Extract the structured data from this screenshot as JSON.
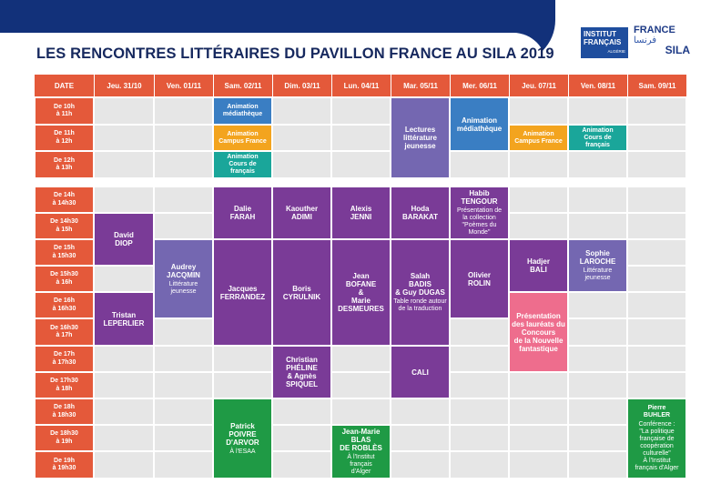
{
  "header": {
    "title": "LES RENCONTRES LITTÉRAIRES DU PAVILLON FRANCE AU SILA 2019",
    "logo_institut": "INSTITUT FRANÇAIS",
    "logo_institut_sub": "ALGÉRIE",
    "logo_france": "FRANCE",
    "logo_arabic": "فرنسا",
    "logo_sila": "SILA"
  },
  "table": {
    "date_label": "DATE",
    "days": [
      "Jeu. 31/10",
      "Ven. 01/11",
      "Sam. 02/11",
      "Dim. 03/11",
      "Lun. 04/11",
      "Mar. 05/11",
      "Mer. 06/11",
      "Jeu. 07/11",
      "Ven. 08/11",
      "Sam. 09/11"
    ],
    "morning_slots": [
      "De 10h\nà 11h",
      "De 11h\nà 12h",
      "De 12h\nà 13h"
    ],
    "afternoon_slots": [
      "De 14h\nà 14h30",
      "De 14h30\nà 15h",
      "De 15h\nà 15h30",
      "De 15h30\nà 16h",
      "De 16h\nà 16h30",
      "De 16h30\nà 17h",
      "De 17h\nà 17h30",
      "De 17h30\nà 18h",
      "De 18h\nà 18h30",
      "De 18h30\nà 19h",
      "De 19h\nà 19h30"
    ]
  },
  "events": [
    {
      "id": "sam-anim-mediatheque",
      "l1": "Animation\nmédiathèque",
      "l2": ""
    },
    {
      "id": "sam-anim-campus",
      "l1": "Animation\nCampus France",
      "l2": ""
    },
    {
      "id": "sam-anim-cours",
      "l1": "Animation\nCours de français",
      "l2": ""
    },
    {
      "id": "mar-lectures",
      "l1": "Lectures\nlittérature\njeunesse",
      "l2": ""
    },
    {
      "id": "mer-anim-mediatheque",
      "l1": "Animation\nmédiathèque",
      "l2": ""
    },
    {
      "id": "jeu-anim-campus",
      "l1": "Animation\nCampus France",
      "l2": ""
    },
    {
      "id": "ven-anim-cours",
      "l1": "Animation\nCours de français",
      "l2": ""
    },
    {
      "id": "jeu-diop",
      "l1": "David\nDIOP",
      "l2": ""
    },
    {
      "id": "jeu-leperlier",
      "l1": "Tristan\nLEPERLIER",
      "l2": ""
    },
    {
      "id": "ven-jacquin",
      "l1": "Audrey\nJACQMIN",
      "l2": "Littérature\njeunesse"
    },
    {
      "id": "sam-farah",
      "l1": "Dalie\nFARAH",
      "l2": ""
    },
    {
      "id": "sam-ferrandez",
      "l1": "Jacques\nFERRANDEZ",
      "l2": ""
    },
    {
      "id": "sam-poivre",
      "l1": "Patrick\nPOIVRE\nD'ARVOR",
      "l2": "À l'ESAA"
    },
    {
      "id": "dim-adimi",
      "l1": "Kaouther\nADIMI",
      "l2": ""
    },
    {
      "id": "dim-cyrulnik",
      "l1": "Boris\nCYRULNIK",
      "l2": ""
    },
    {
      "id": "dim-pheline",
      "l1": "Christian\nPHÉLINE\n& Agnès\nSPIQUEL",
      "l2": ""
    },
    {
      "id": "lun-jenni",
      "l1": "Alexis\nJENNI",
      "l2": ""
    },
    {
      "id": "lun-bofane",
      "l1": "Jean\nBOFANE\n&\nMarie\nDESMEURES",
      "l2": ""
    },
    {
      "id": "lun-blas",
      "l1": "Jean-Marie\nBLAS\nDE ROBLÈS",
      "l2": "À l'Institut\nfrançais\nd'Alger"
    },
    {
      "id": "mar-barakat",
      "l1": "Hoda\nBARAKAT",
      "l2": ""
    },
    {
      "id": "mar-badis",
      "l1": "Salah\nBADIS\n& Guy DUGAS",
      "l2": "Table ronde autour\nde la traduction"
    },
    {
      "id": "mar-cali",
      "l1": "CALI",
      "l2": ""
    },
    {
      "id": "mer-tengour",
      "l1": "Habib\nTENGOUR",
      "l2": "Présentation de\nla collection\n\"Poèmes du Monde\""
    },
    {
      "id": "mer-rolin",
      "l1": "Olivier\nROLIN",
      "l2": ""
    },
    {
      "id": "jeu-bali",
      "l1": "Hadjer\nBALI",
      "l2": ""
    },
    {
      "id": "jeu-lauréats",
      "l1": "Présentation\ndes lauréats du\nConcours\nde la Nouvelle\nfantastique",
      "l2": ""
    },
    {
      "id": "ven-laroche",
      "l1": "Sophie\nLAROCHE",
      "l2": "Littérature\njeunesse"
    },
    {
      "id": "sam09-buhler",
      "l1": "Pierre\nBUHLER",
      "l2": "Conférence :\n\"La politique\nfrançaise de\ncoopération\nculturelle\"\nÀ l'Institut\nfrançais d'Alger"
    }
  ]
}
